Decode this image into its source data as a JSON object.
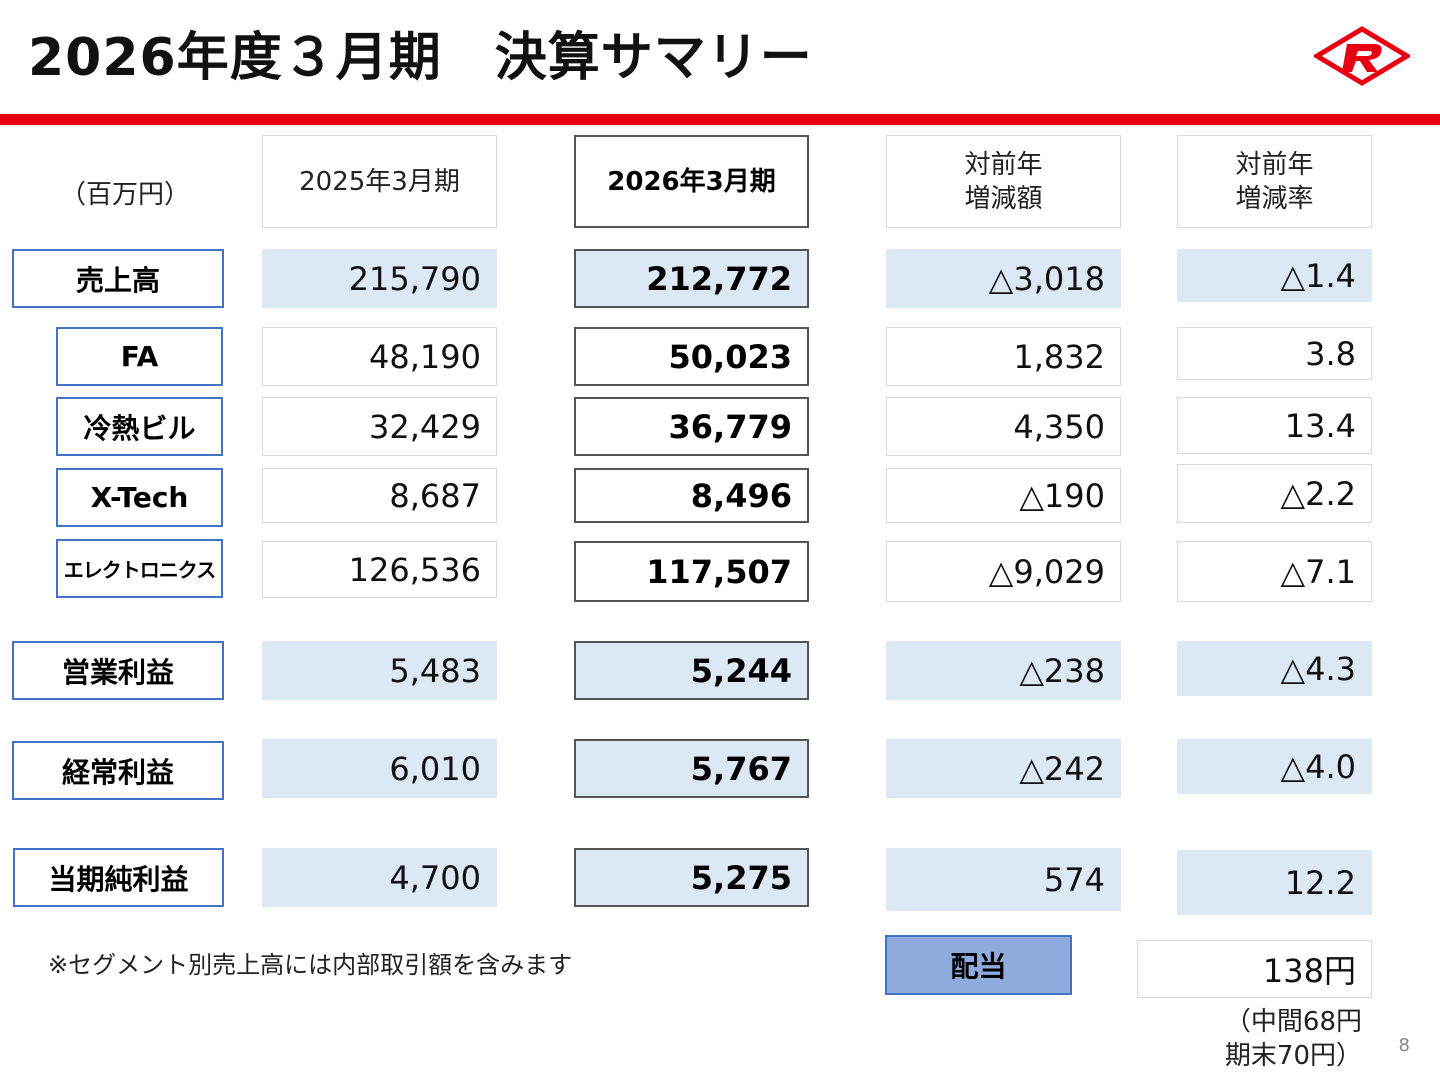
{
  "title": "2026年度３月期　決算サマリー",
  "unit": "（百万円）",
  "headers": {
    "prev": "2025年3月期",
    "cur": "2026年3月期",
    "diff": [
      "対前年",
      "増減額"
    ],
    "rate": [
      "対前年",
      "増減率"
    ]
  },
  "rows": [
    {
      "label": "売上高",
      "prev": "215,790",
      "cur": "212,772",
      "diff": "△3,018",
      "rate": "△1.4"
    },
    {
      "label": "FA",
      "prev": "48,190",
      "cur": "50,023",
      "diff": "1,832",
      "rate": "3.8"
    },
    {
      "label": "冷熱ビル",
      "prev": "32,429",
      "cur": "36,779",
      "diff": "4,350",
      "rate": "13.4"
    },
    {
      "label": "X-Tech",
      "prev": "8,687",
      "cur": "8,496",
      "diff": "△190",
      "rate": "△2.2"
    },
    {
      "label": "エレクトロニクス",
      "prev": "126,536",
      "cur": "117,507",
      "diff": "△9,029",
      "rate": "△7.1"
    },
    {
      "label": "営業利益",
      "prev": "5,483",
      "cur": "5,244",
      "diff": "△238",
      "rate": "△4.3"
    },
    {
      "label": "経常利益",
      "prev": "6,010",
      "cur": "5,767",
      "diff": "△242",
      "rate": "△4.0"
    },
    {
      "label": "当期純利益",
      "prev": "4,700",
      "cur": "5,275",
      "diff": "574",
      "rate": "12.2"
    }
  ],
  "note": "※セグメント別売上高には内部取引額を含みます",
  "dividend": {
    "label": "配当",
    "value": "138円",
    "detail": [
      "（中間68円",
      "期末70円）"
    ]
  },
  "page_number": "8",
  "colors": {
    "accent_red": "#e60012",
    "label_border": "#4472c4",
    "shade": "#dde8f5",
    "dividend_fill": "#8faadc"
  },
  "icons": {
    "logo": "company-logo-icon"
  }
}
